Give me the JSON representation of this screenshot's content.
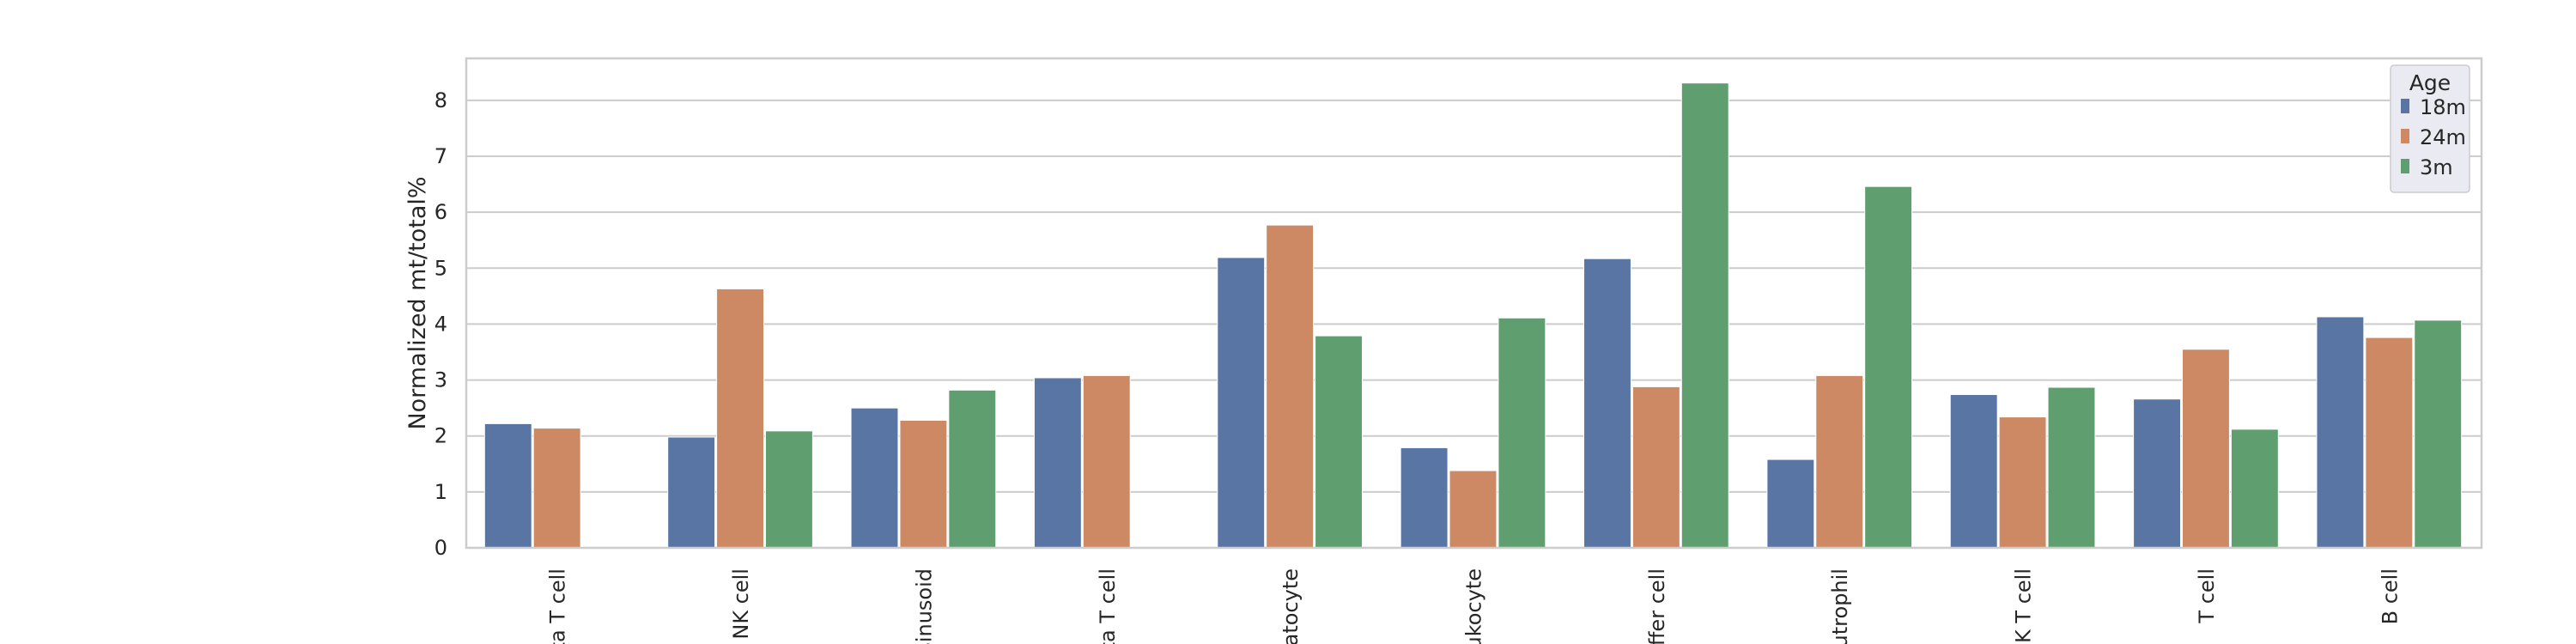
{
  "chart_data": {
    "type": "bar",
    "ylabel": "Normalized mt/total%",
    "ylim": [
      0,
      8.75
    ],
    "yticks": [
      0,
      1,
      2,
      3,
      4,
      5,
      6,
      7,
      8
    ],
    "grid": true,
    "legend": {
      "title": "Age",
      "placement": "top-right"
    },
    "categories": [
      "ta T cell",
      "NK cell",
      "sinusoid",
      "ta T cell",
      "atocyte",
      "ukocyte",
      "ffer cell",
      "utrophil",
      "NK T cell",
      "T cell",
      "B cell"
    ],
    "series": [
      {
        "name": "18m",
        "color": "#5875a4",
        "values": [
          2.22,
          1.98,
          2.5,
          3.04,
          5.19,
          1.79,
          5.17,
          1.58,
          2.74,
          2.66,
          4.13
        ]
      },
      {
        "name": "24m",
        "color": "#cc8963",
        "values": [
          2.14,
          4.63,
          2.28,
          3.08,
          5.77,
          1.38,
          2.88,
          3.08,
          2.34,
          3.55,
          3.76
        ]
      },
      {
        "name": "3m",
        "color": "#5f9e6e",
        "values": [
          null,
          2.09,
          2.82,
          null,
          3.79,
          4.11,
          8.31,
          6.46,
          2.87,
          2.12,
          4.07
        ]
      }
    ]
  }
}
